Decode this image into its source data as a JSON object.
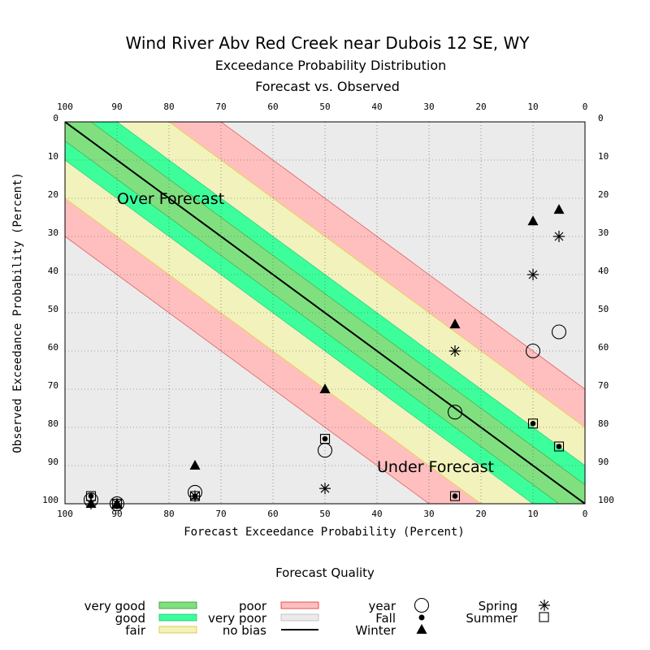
{
  "chart_data": {
    "type": "scatter",
    "title": "Wind River Abv Red Creek near Dubois 12 SE, WY",
    "subtitle1": "Exceedance Probability Distribution",
    "subtitle2": "Forecast vs. Observed",
    "xlabel": "Forecast Exceedance Probability (Percent)",
    "ylabel": "Observed Exceedance Probability (Percent)",
    "xlim": [
      100,
      0
    ],
    "ylim": [
      0,
      100
    ],
    "x_ticks": [
      100,
      90,
      80,
      70,
      60,
      50,
      40,
      30,
      20,
      10,
      0
    ],
    "y_ticks": [
      0,
      10,
      20,
      30,
      40,
      50,
      60,
      70,
      80,
      90,
      100
    ],
    "grid": true,
    "annotations": [
      "Over Forecast",
      "Under Forecast"
    ],
    "bands": [
      {
        "name": "very good",
        "half_width": 5,
        "color": "#80e080"
      },
      {
        "name": "good",
        "half_width": 10,
        "color": "#3cff9c"
      },
      {
        "name": "fair",
        "half_width": 20,
        "color": "#f2f2bc"
      },
      {
        "name": "poor",
        "half_width": 30,
        "color": "#ffbfbf"
      },
      {
        "name": "very poor",
        "color": "#3cff9c"
      },
      {
        "name": "no bias",
        "color": "#ebebeb"
      }
    ],
    "background_color": "#ebebeb",
    "series": [
      {
        "name": "year",
        "marker": "circle",
        "points": [
          [
            95,
            99
          ],
          [
            90,
            100
          ],
          [
            75,
            97
          ],
          [
            50,
            86
          ],
          [
            25,
            76
          ],
          [
            10,
            60
          ],
          [
            5,
            55
          ]
        ]
      },
      {
        "name": "Fall",
        "marker": "dot",
        "points": [
          [
            95,
            98
          ],
          [
            90,
            100
          ],
          [
            75,
            98
          ],
          [
            50,
            83
          ],
          [
            25,
            98
          ],
          [
            10,
            79
          ],
          [
            5,
            85
          ]
        ]
      },
      {
        "name": "Winter",
        "marker": "triangle",
        "points": [
          [
            95,
            100
          ],
          [
            90,
            100
          ],
          [
            75,
            90
          ],
          [
            50,
            70
          ],
          [
            25,
            53
          ],
          [
            10,
            26
          ],
          [
            5,
            23
          ]
        ]
      },
      {
        "name": "Spring",
        "marker": "asterisk",
        "points": [
          [
            95,
            100
          ],
          [
            90,
            100
          ],
          [
            75,
            98
          ],
          [
            50,
            96
          ],
          [
            25,
            60
          ],
          [
            10,
            40
          ],
          [
            5,
            30
          ]
        ]
      },
      {
        "name": "Summer",
        "marker": "square",
        "points": [
          [
            95,
            98
          ],
          [
            90,
            100
          ],
          [
            75,
            98
          ],
          [
            50,
            83
          ],
          [
            25,
            98
          ],
          [
            10,
            79
          ],
          [
            5,
            85
          ]
        ]
      }
    ]
  },
  "legend": {
    "title": "Forecast Quality",
    "col1_labels": [
      "very good",
      "good",
      "fair"
    ],
    "col2_labels": [
      "poor",
      "very poor",
      "no bias"
    ],
    "col3_labels": [
      "year",
      "Fall",
      "Winter"
    ],
    "col4_labels": [
      "Spring",
      "Summer"
    ],
    "colors": {
      "very_good": "#80e080",
      "good": "#3cff9c",
      "fair": "#f2f2bc",
      "poor": "#ffbfbf",
      "very_poor": "#3cff9c",
      "no_bias_fill": "#ebebeb"
    }
  }
}
